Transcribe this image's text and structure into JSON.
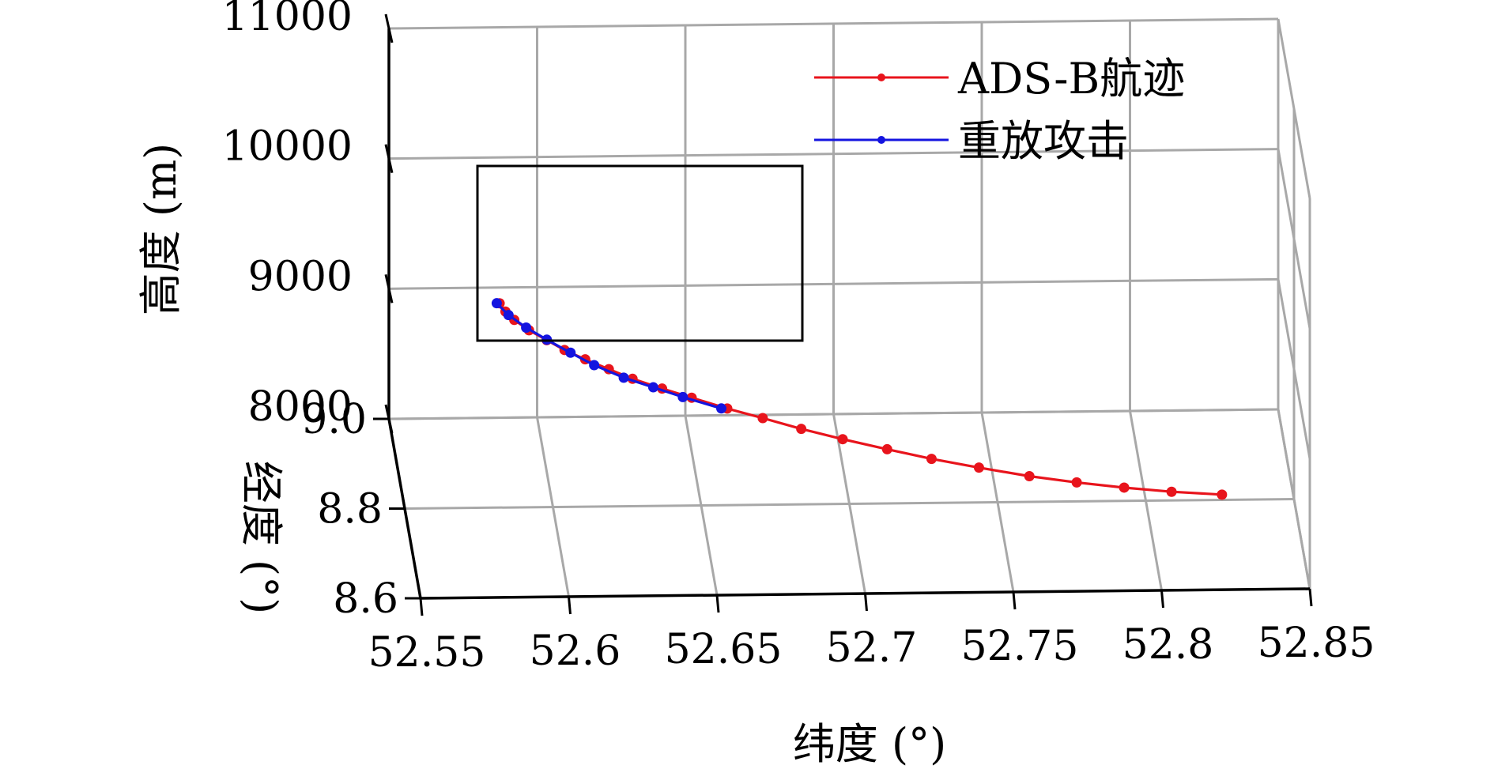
{
  "chart_data": {
    "type": "line",
    "projection": "3d",
    "title": "",
    "xlabel": "纬度 (°)",
    "ylabel": "经度 (°)",
    "zlabel": "高度 (m)",
    "xlim": [
      52.55,
      52.85
    ],
    "ylim": [
      8.6,
      9.0
    ],
    "zlim": [
      8000,
      11000
    ],
    "x_ticks": [
      "52.55",
      "52.6",
      "52.65",
      "52.7",
      "52.75",
      "52.8",
      "52.85"
    ],
    "y_ticks": [
      "8.6",
      "8.8",
      "9.0"
    ],
    "z_ticks": [
      "8000",
      "9000",
      "10000",
      "11000"
    ],
    "grid": true,
    "legend_position": "top-right",
    "colors": {
      "ads_b": "#e8141c",
      "replay": "#1414e0"
    },
    "series": [
      {
        "name": "ADS-B航迹",
        "color_key": "ads_b",
        "points": [
          [
            52.581,
            8.762,
            9701
          ],
          [
            52.583,
            8.763,
            9633
          ],
          [
            52.586,
            8.764,
            9565
          ],
          [
            52.591,
            8.765,
            9481
          ],
          [
            52.597,
            8.766,
            9400
          ],
          [
            52.603,
            8.766,
            9323
          ],
          [
            52.61,
            8.767,
            9246
          ],
          [
            52.618,
            8.768,
            9165
          ],
          [
            52.626,
            8.768,
            9089
          ],
          [
            52.636,
            8.769,
            9008
          ],
          [
            52.646,
            8.77,
            8932
          ],
          [
            52.658,
            8.77,
            8846
          ],
          [
            52.67,
            8.771,
            8766
          ],
          [
            52.683,
            8.771,
            8680
          ],
          [
            52.697,
            8.772,
            8594
          ],
          [
            52.712,
            8.772,
            8513
          ],
          [
            52.727,
            8.773,
            8432
          ],
          [
            52.743,
            8.773,
            8361
          ],
          [
            52.76,
            8.773,
            8291
          ],
          [
            52.776,
            8.774,
            8236
          ],
          [
            52.792,
            8.774,
            8192
          ],
          [
            52.808,
            8.774,
            8156
          ],
          [
            52.825,
            8.774,
            8130
          ]
        ]
      },
      {
        "name": "重放攻击",
        "color_key": "replay",
        "points": [
          [
            52.58,
            8.761,
            9705
          ],
          [
            52.584,
            8.762,
            9610
          ],
          [
            52.59,
            8.764,
            9505
          ],
          [
            52.597,
            8.765,
            9407
          ],
          [
            52.605,
            8.765,
            9305
          ],
          [
            52.613,
            8.766,
            9204
          ],
          [
            52.623,
            8.767,
            9102
          ],
          [
            52.633,
            8.768,
            9022
          ],
          [
            52.643,
            8.769,
            8941
          ],
          [
            52.656,
            8.77,
            8847
          ]
        ]
      }
    ]
  },
  "legend": {
    "items": [
      "ADS-B航迹",
      "重放攻击"
    ]
  },
  "zoom_box": {
    "present": true
  }
}
